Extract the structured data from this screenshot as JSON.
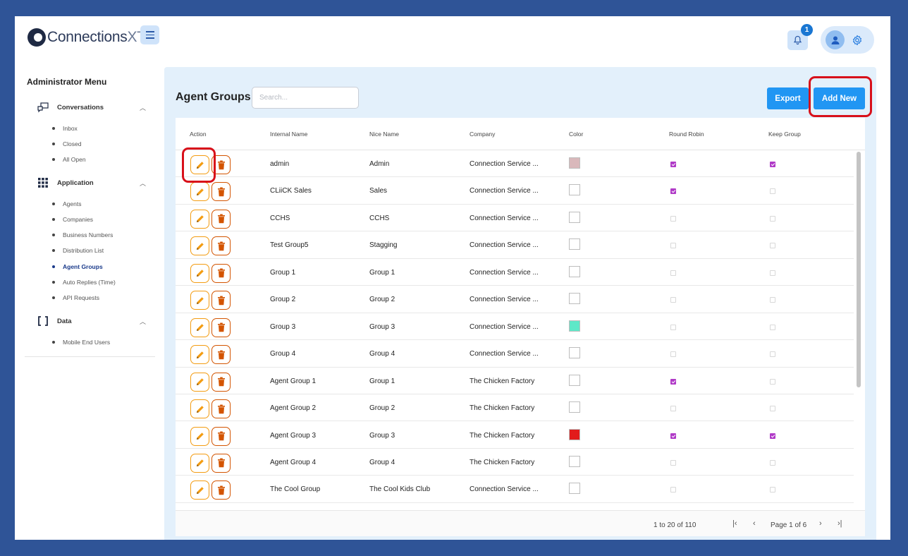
{
  "app": {
    "logo": {
      "text_main": "Connections",
      "text_suffix": "XT",
      "trademark": "™"
    },
    "notifications": {
      "count": "1"
    }
  },
  "sidebar": {
    "title": "Administrator Menu",
    "sections": [
      {
        "label": "Conversations",
        "items": [
          "Inbox",
          "Closed",
          "All Open"
        ]
      },
      {
        "label": "Application",
        "items": [
          "Agents",
          "Companies",
          "Business Numbers",
          "Distribution List",
          "Agent Groups",
          "Auto Replies (Time)",
          "API Requests"
        ]
      },
      {
        "label": "Data",
        "items": [
          "Mobile End Users"
        ]
      }
    ],
    "active_item": "Agent Groups"
  },
  "main": {
    "title": "Agent Groups",
    "search_placeholder": "Search...",
    "export_label": "Export",
    "add_new_label": "Add New",
    "columns": [
      "Action",
      "Internal Name",
      "Nice Name",
      "Company",
      "Color",
      "Round Robin",
      "Keep Group"
    ],
    "rows": [
      {
        "internal": "admin",
        "nice": "Admin",
        "company": "Connection Service ...",
        "color": "#d9b8bb",
        "round_robin": true,
        "keep_group": true
      },
      {
        "internal": "CLiiCK Sales",
        "nice": "Sales",
        "company": "Connection Service ...",
        "color": "#ffffff",
        "round_robin": true,
        "keep_group": false
      },
      {
        "internal": "CCHS",
        "nice": "CCHS",
        "company": "Connection Service ...",
        "color": "#ffffff",
        "round_robin": false,
        "keep_group": false
      },
      {
        "internal": "Test Group5",
        "nice": "Stagging",
        "company": "Connection Service ...",
        "color": "#ffffff",
        "round_robin": false,
        "keep_group": false
      },
      {
        "internal": "Group 1",
        "nice": "Group 1",
        "company": "Connection Service ...",
        "color": "#ffffff",
        "round_robin": false,
        "keep_group": false
      },
      {
        "internal": "Group 2",
        "nice": "Group 2",
        "company": "Connection Service ...",
        "color": "#ffffff",
        "round_robin": false,
        "keep_group": false
      },
      {
        "internal": "Group 3",
        "nice": "Group 3",
        "company": "Connection Service ...",
        "color": "#5ee8c8",
        "round_robin": false,
        "keep_group": false
      },
      {
        "internal": "Group 4",
        "nice": "Group 4",
        "company": "Connection Service ...",
        "color": "#ffffff",
        "round_robin": false,
        "keep_group": false
      },
      {
        "internal": "Agent Group 1",
        "nice": "Group 1",
        "company": "The Chicken Factory",
        "color": "#ffffff",
        "round_robin": true,
        "keep_group": false
      },
      {
        "internal": "Agent Group 2",
        "nice": "Group 2",
        "company": "The Chicken Factory",
        "color": "#ffffff",
        "round_robin": false,
        "keep_group": false
      },
      {
        "internal": "Agent Group 3",
        "nice": "Group 3",
        "company": "The Chicken Factory",
        "color": "#e21b1b",
        "round_robin": true,
        "keep_group": true
      },
      {
        "internal": "Agent Group 4",
        "nice": "Group 4",
        "company": "The Chicken Factory",
        "color": "#ffffff",
        "round_robin": false,
        "keep_group": false
      },
      {
        "internal": "The Cool Group",
        "nice": "The Cool Kids Club",
        "company": "Connection Service ...",
        "color": "#ffffff",
        "round_robin": false,
        "keep_group": false
      }
    ],
    "pagination": {
      "range_text": "1 to 20 of 110",
      "page_text": "Page 1 of 6"
    }
  },
  "colors": {
    "accent": "#2196f3",
    "highlight": "#d8101a",
    "edit": "#f39c12",
    "delete": "#d35400",
    "checkbox": "#b03ac7"
  },
  "icons": [
    "menu-icon",
    "bell-icon",
    "user-icon",
    "gear-icon",
    "chat-icon",
    "grid-icon",
    "bracket-icon",
    "pencil-icon",
    "trash-icon"
  ]
}
